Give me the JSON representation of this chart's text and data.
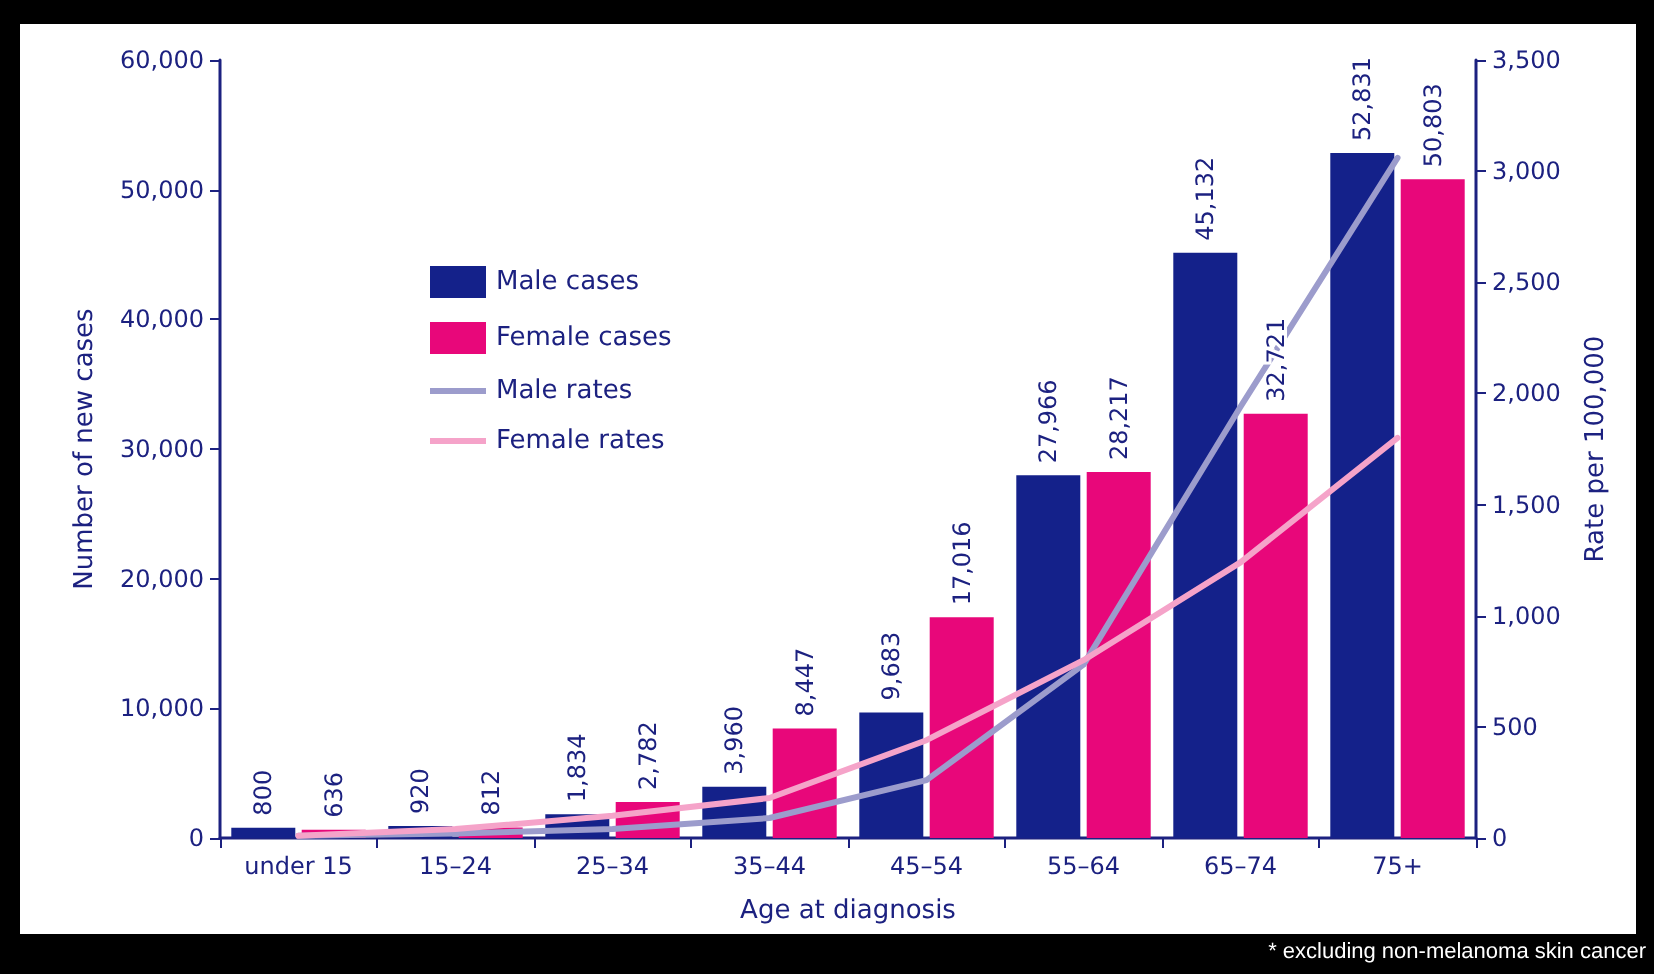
{
  "chart_data": {
    "type": "bar",
    "xlabel": "Age at diagnosis",
    "ylabel": "Number of new cases",
    "y2label": "Rate per 100,000",
    "categories": [
      "under 15",
      "15–24",
      "25–34",
      "35–44",
      "45–54",
      "55–64",
      "65–74",
      "75+"
    ],
    "series": [
      {
        "name": "Male cases",
        "color": "#14218a",
        "values": [
          800,
          920,
          1834,
          3960,
          9683,
          27966,
          45132,
          52831
        ],
        "value_labels": [
          "800",
          "920",
          "1,834",
          "3,960",
          "9,683",
          "27,966",
          "45,132",
          "52,831"
        ]
      },
      {
        "name": "Female cases",
        "color": "#e8077a",
        "values": [
          636,
          812,
          2782,
          8447,
          17016,
          28217,
          32721,
          50803
        ],
        "value_labels": [
          "636",
          "812",
          "2,782",
          "8,447",
          "17,016",
          "28,217",
          "32,721",
          "50,803"
        ]
      },
      {
        "name": "Male rates",
        "type": "line",
        "axis": "y2",
        "color": "#9c9ccc",
        "values": [
          10,
          20,
          40,
          90,
          260,
          780,
          1940,
          3060
        ]
      },
      {
        "name": "Female rates",
        "type": "line",
        "axis": "y2",
        "color": "#f5a3c9",
        "values": [
          10,
          40,
          100,
          180,
          440,
          800,
          1240,
          1800
        ]
      }
    ],
    "ylim": [
      0,
      60000
    ],
    "yticks": [
      {
        "value": 0,
        "label": "0"
      },
      {
        "value": 10000,
        "label": "10,000"
      },
      {
        "value": 20000,
        "label": "20,000"
      },
      {
        "value": 30000,
        "label": "30,000"
      },
      {
        "value": 40000,
        "label": "40,000"
      },
      {
        "value": 50000,
        "label": "50,000"
      },
      {
        "value": 60000,
        "label": "60,000"
      }
    ],
    "y2lim": [
      0,
      3500
    ],
    "y2ticks": [
      {
        "value": 0,
        "label": "0"
      },
      {
        "value": 500,
        "label": "500"
      },
      {
        "value": 1000,
        "label": "1,000"
      },
      {
        "value": 1500,
        "label": "1,500"
      },
      {
        "value": 2000,
        "label": "2,000"
      },
      {
        "value": 2500,
        "label": "2,500"
      },
      {
        "value": 3000,
        "label": "3,000"
      },
      {
        "value": 3500,
        "label": "3,500"
      }
    ],
    "grid": false,
    "legend": "top left",
    "marker": "none",
    "line_style": "solid",
    "annotations": [
      "* excluding non-melanoma skin cancer"
    ]
  }
}
